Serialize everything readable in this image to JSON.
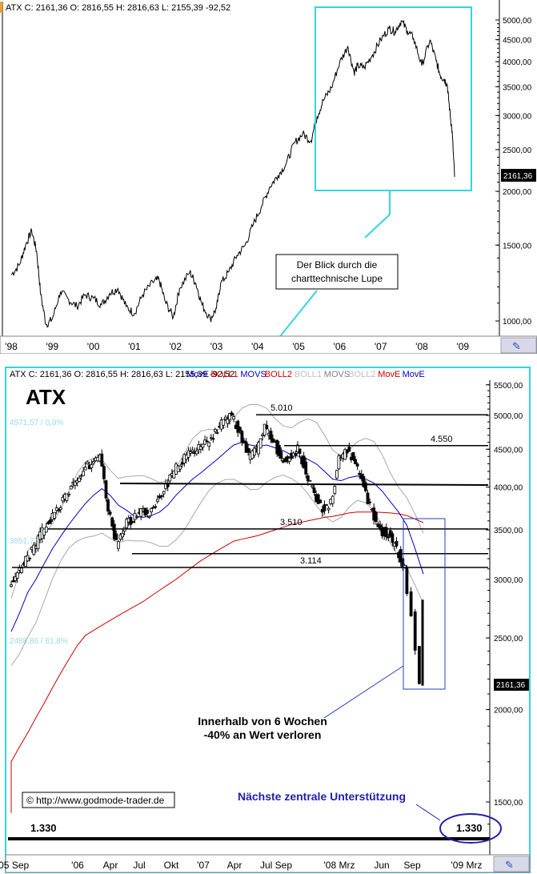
{
  "chart_data": [
    {
      "type": "line",
      "header": "ATX C: 2161,36 O: 2816,55 H: 2816,63 L: 2155,39 -92,52",
      "scale": "log",
      "ylim": [
        950,
        5500
      ],
      "yticks": [
        "1000,00",
        "1500,00",
        "2000,00",
        "2500,00",
        "3000,00",
        "3500,00",
        "4000,00",
        "4500,00",
        "5000,00"
      ],
      "xticks": [
        "'98",
        "'99",
        "'00",
        "'01",
        "'02",
        "'03",
        "'04",
        "'05",
        "'06",
        "'07",
        "'08",
        "'09"
      ],
      "last_price_label": "2161,36",
      "annotation": "Der Blick durch die charttechnische Lupe",
      "x": [
        1998.0,
        1998.2,
        1998.35,
        1998.5,
        1998.62,
        1998.72,
        1998.85,
        1999.0,
        1999.2,
        1999.4,
        1999.6,
        1999.8,
        2000.0,
        2000.2,
        2000.4,
        2000.6,
        2000.8,
        2001.0,
        2001.2,
        2001.45,
        2001.6,
        2001.75,
        2001.95,
        2002.1,
        2002.35,
        2002.5,
        2002.65,
        2002.85,
        2003.0,
        2003.1,
        2003.3,
        2003.5,
        2003.7,
        2003.9,
        2004.1,
        2004.3,
        2004.5,
        2004.7,
        2004.9,
        2005.1,
        2005.3,
        2005.45,
        2005.6,
        2005.8,
        2006.0,
        2006.2,
        2006.35,
        2006.45,
        2006.6,
        2006.8,
        2007.0,
        2007.2,
        2007.35,
        2007.5,
        2007.65,
        2007.8,
        2008.0,
        2008.2,
        2008.35,
        2008.45,
        2008.55,
        2008.62,
        2008.68,
        2008.74,
        2008.8
      ],
      "values": [
        1280,
        1350,
        1500,
        1620,
        1450,
        1150,
        980,
        1010,
        1170,
        1120,
        1080,
        1150,
        1130,
        1090,
        1160,
        1190,
        1080,
        1040,
        1150,
        1230,
        1250,
        1110,
        1020,
        1190,
        1300,
        1220,
        1090,
        1010,
        1070,
        1220,
        1300,
        1420,
        1500,
        1680,
        1850,
        2050,
        2180,
        2320,
        2590,
        2720,
        2620,
        2980,
        3250,
        3480,
        3980,
        4350,
        3780,
        3920,
        3880,
        4150,
        4500,
        4780,
        4700,
        4980,
        4720,
        4540,
        3920,
        4490,
        4020,
        3720,
        3640,
        3540,
        3090,
        2750,
        2161
      ]
    },
    {
      "type": "candlestick",
      "title": "ATX",
      "header": {
        "symbol_ohlc": "ATX C: 2161,36 O: 2816,55 H: 2816,63 L: 2155,39 -92,52",
        "legend": [
          {
            "label": "MovE",
            "color": "#0000cc"
          },
          {
            "label": "BOLL1",
            "color": "#cc0000"
          },
          {
            "label": "MOVS",
            "color": "#0000cc"
          },
          {
            "label": "BOLL2",
            "color": "#cc0000"
          },
          {
            "label": "BOLL1",
            "color": "#c0c0c0"
          },
          {
            "label": "MOVS",
            "color": "#808080"
          },
          {
            "label": "BOLL2",
            "color": "#c0c0c0"
          },
          {
            "label": "MovE",
            "color": "#cc0000"
          },
          {
            "label": "MovE",
            "color": "#0000cc"
          }
        ]
      },
      "scale": "log",
      "ylim": [
        1300,
        5600
      ],
      "yticks": [
        "1500,00",
        "2000,00",
        "2500,00",
        "3000,00",
        "3500,00",
        "4000,00",
        "4500,00",
        "5000,00",
        "5500,00"
      ],
      "xticks": [
        "'05 Sep",
        "'06",
        "Apr",
        "Jul",
        "Okt",
        "'07",
        "Apr",
        "Jul Sep",
        "'08 Mrz",
        "Jun",
        "Sep",
        "'09 Mrz"
      ],
      "last_price_label": "2161,36",
      "levels": [
        {
          "label": "5.010",
          "value": 5010
        },
        {
          "label": "4.550",
          "value": 4550
        },
        {
          "label": "3.510",
          "value": 3510
        },
        {
          "label": "3.114",
          "value": 3114
        },
        {
          "label": "1.330",
          "value": 1330
        }
      ],
      "fib_labels": [
        "4971,57 / 0,0%",
        "3851,73",
        "2488,86 / 61,8%"
      ],
      "close": [
        2950,
        3050,
        3200,
        3300,
        3480,
        3600,
        3750,
        3900,
        4080,
        4250,
        4300,
        4380,
        3750,
        3350,
        3560,
        3630,
        3700,
        3680,
        3850,
        4000,
        4200,
        4350,
        4450,
        4520,
        4600,
        4750,
        4900,
        5000,
        4700,
        4400,
        4500,
        4800,
        4650,
        4350,
        4400,
        4500,
        4200,
        3900,
        3750,
        3800,
        4350,
        4500,
        4300,
        4000,
        3700,
        3500,
        3450,
        3300,
        3100,
        2700,
        2161
      ],
      "sma_blue": [
        2550,
        2700,
        2880,
        3000,
        3150,
        3300,
        3430,
        3560,
        3680,
        3800,
        3900,
        3980,
        3900,
        3780,
        3720,
        3650,
        3640,
        3660,
        3700,
        3780,
        3900,
        4000,
        4100,
        4180,
        4270,
        4360,
        4460,
        4560,
        4600,
        4560,
        4540,
        4560,
        4520,
        4480,
        4420,
        4400,
        4360,
        4300,
        4200,
        4100,
        4080,
        4120,
        4140,
        4100,
        4050,
        3950,
        3820,
        3700,
        3550,
        3300,
        3050
      ],
      "ma_red": [
        1700,
        1780,
        1860,
        1950,
        2040,
        2140,
        2240,
        2340,
        2440,
        2520,
        2560,
        2600,
        2640,
        2680,
        2720,
        2760,
        2800,
        2850,
        2900,
        2950,
        3000,
        3060,
        3120,
        3180,
        3230,
        3280,
        3330,
        3380,
        3400,
        3420,
        3440,
        3470,
        3500,
        3530,
        3560,
        3580,
        3600,
        3620,
        3640,
        3650,
        3670,
        3690,
        3700,
        3700,
        3700,
        3695,
        3690,
        3680,
        3660,
        3620,
        3580
      ],
      "annotations": {
        "drop_text": [
          "Innerhalb von 6 Wochen",
          "-40% an Wert verloren"
        ],
        "support_text": "Nächste zentrale Unterstützung",
        "copyright": "© http://www.godmode-trader.de"
      }
    }
  ]
}
